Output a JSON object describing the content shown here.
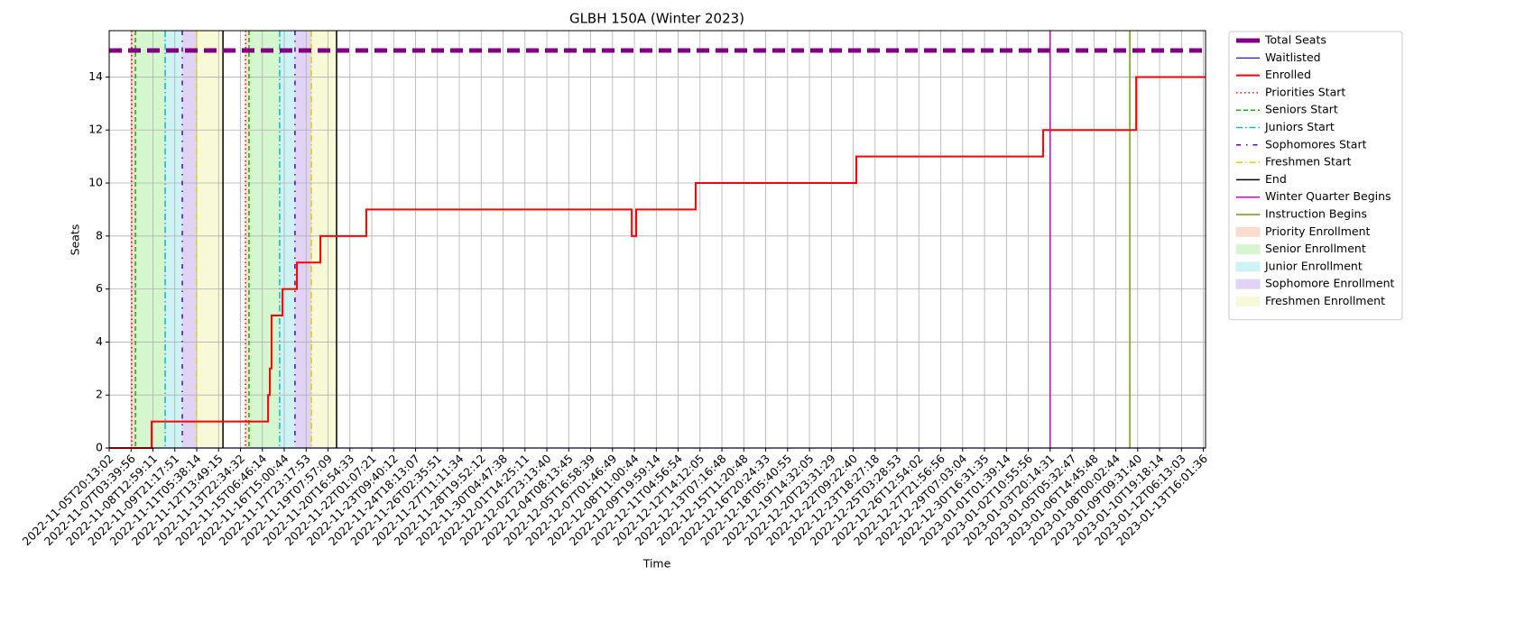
{
  "chart_data": {
    "type": "line",
    "title": "GLBH 150A (Winter 2023)",
    "x_label": "Time",
    "y_label": "Seats",
    "xlim": [
      0,
      50.1
    ],
    "ylim": [
      0,
      15.75
    ],
    "yticks": [
      0,
      2,
      4,
      6,
      8,
      10,
      12,
      14
    ],
    "xticks": [
      {
        "value": 0,
        "label": "2022-11-05T20:13:02"
      },
      {
        "value": 1,
        "label": "2022-11-07T03:39:56"
      },
      {
        "value": 2,
        "label": "2022-11-08T12:59:11"
      },
      {
        "value": 3,
        "label": "2022-11-09T21:17:51"
      },
      {
        "value": 4,
        "label": "2022-11-11T05:38:14"
      },
      {
        "value": 5,
        "label": "2022-11-12T13:49:15"
      },
      {
        "value": 6,
        "label": "2022-11-13T22:34:32"
      },
      {
        "value": 7,
        "label": "2022-11-15T06:46:14"
      },
      {
        "value": 8,
        "label": "2022-11-16T15:00:44"
      },
      {
        "value": 9,
        "label": "2022-11-17T23:17:53"
      },
      {
        "value": 10,
        "label": "2022-11-19T07:57:09"
      },
      {
        "value": 11,
        "label": "2022-11-20T16:54:33"
      },
      {
        "value": 12,
        "label": "2022-11-22T01:07:21"
      },
      {
        "value": 13,
        "label": "2022-11-23T09:40:12"
      },
      {
        "value": 14,
        "label": "2022-11-24T18:13:07"
      },
      {
        "value": 15,
        "label": "2022-11-26T02:35:51"
      },
      {
        "value": 16,
        "label": "2022-11-27T11:11:34"
      },
      {
        "value": 17,
        "label": "2022-11-28T19:52:12"
      },
      {
        "value": 18,
        "label": "2022-11-30T04:47:38"
      },
      {
        "value": 19,
        "label": "2022-12-01T14:25:11"
      },
      {
        "value": 20,
        "label": "2022-12-02T23:13:40"
      },
      {
        "value": 21,
        "label": "2022-12-04T08:13:45"
      },
      {
        "value": 22,
        "label": "2022-12-05T16:58:39"
      },
      {
        "value": 23,
        "label": "2022-12-07T01:46:49"
      },
      {
        "value": 24,
        "label": "2022-12-08T11:00:44"
      },
      {
        "value": 25,
        "label": "2022-12-09T19:59:14"
      },
      {
        "value": 26,
        "label": "2022-12-11T04:56:54"
      },
      {
        "value": 27,
        "label": "2022-12-12T14:12:05"
      },
      {
        "value": 28,
        "label": "2022-12-13T07:16:48"
      },
      {
        "value": 29,
        "label": "2022-12-15T11:20:48"
      },
      {
        "value": 30,
        "label": "2022-12-16T20:24:33"
      },
      {
        "value": 31,
        "label": "2022-12-18T05:40:55"
      },
      {
        "value": 32,
        "label": "2022-12-19T14:32:05"
      },
      {
        "value": 33,
        "label": "2022-12-20T23:31:29"
      },
      {
        "value": 34,
        "label": "2022-12-22T09:22:40"
      },
      {
        "value": 35,
        "label": "2022-12-23T18:27:18"
      },
      {
        "value": 36,
        "label": "2022-12-25T03:28:53"
      },
      {
        "value": 37,
        "label": "2022-12-26T12:54:02"
      },
      {
        "value": 38,
        "label": "2022-12-27T21:56:56"
      },
      {
        "value": 39,
        "label": "2022-12-29T07:03:04"
      },
      {
        "value": 40,
        "label": "2022-12-30T16:31:35"
      },
      {
        "value": 41,
        "label": "2023-01-01T01:39:14"
      },
      {
        "value": 42,
        "label": "2023-01-02T10:55:56"
      },
      {
        "value": 43,
        "label": "2023-01-03T20:14:31"
      },
      {
        "value": 44,
        "label": "2023-01-05T05:32:47"
      },
      {
        "value": 45,
        "label": "2023-01-06T14:45:48"
      },
      {
        "value": 46,
        "label": "2023-01-08T00:02:44"
      },
      {
        "value": 47,
        "label": "2023-01-09T09:31:40"
      },
      {
        "value": 48,
        "label": "2023-01-10T19:18:14"
      },
      {
        "value": 49,
        "label": "2023-01-12T06:13:03"
      },
      {
        "value": 50,
        "label": "2023-01-13T16:01:36"
      }
    ],
    "grid": true,
    "legend": "outside right",
    "hlines": [
      {
        "name": "Total Seats",
        "color": "#800080",
        "style": "dashed",
        "width": 5,
        "value": 15
      }
    ],
    "series": [
      {
        "name": "Waitlisted",
        "color": "#0000ff",
        "style": "solid",
        "width": 1.2,
        "x": [
          0,
          50.1
        ],
        "values": [
          0,
          0
        ]
      },
      {
        "name": "Enrolled",
        "color": "#ff0000",
        "style": "solid",
        "width": 2,
        "x": [
          0,
          1.94,
          7.26,
          7.34,
          7.42,
          7.92,
          8.58,
          9.65,
          11.75,
          23.88,
          24.08,
          26.8,
          34.14,
          42.68,
          46.93,
          50.1
        ],
        "values": [
          0,
          1,
          2,
          3,
          5,
          6,
          7,
          8,
          9,
          8,
          9,
          10,
          11,
          12,
          14,
          14
        ]
      }
    ],
    "vlines": [
      {
        "name": "Priorities Start",
        "color": "#ff0000",
        "style": "dotted",
        "x": [
          1.03,
          6.23
        ]
      },
      {
        "name": "Seniors Start",
        "color": "#00bb00",
        "style": "dashed",
        "x": [
          1.2,
          6.39
        ]
      },
      {
        "name": "Juniors Start",
        "color": "#00bfbf",
        "style": "dashdot",
        "x": [
          2.56,
          7.79
        ]
      },
      {
        "name": "Sophomores Start",
        "color": "#5500cc",
        "style": "loosedashdot",
        "x": [
          3.34,
          8.49
        ]
      },
      {
        "name": "Freshmen Start",
        "color": "#e0d000",
        "style": "dashdot",
        "x": [
          3.99,
          9.24
        ]
      },
      {
        "name": "End",
        "color": "#000000",
        "style": "solid",
        "x": [
          5.2,
          10.39
        ]
      },
      {
        "name": "Winter Quarter Begins",
        "color": "#cc00cc",
        "style": "solid",
        "x": [
          43.0
        ]
      },
      {
        "name": "Instruction Begins",
        "color": "#6b9e00",
        "style": "solid",
        "x": [
          46.64
        ]
      }
    ],
    "spans": [
      {
        "name": "Priority Enrollment",
        "color": "#fbdccf",
        "ranges": [
          [
            1.03,
            1.2
          ],
          [
            6.23,
            6.39
          ]
        ]
      },
      {
        "name": "Senior Enrollment",
        "color": "#d6f6d0",
        "ranges": [
          [
            1.2,
            2.56
          ],
          [
            6.39,
            7.79
          ]
        ]
      },
      {
        "name": "Junior Enrollment",
        "color": "#cdf3f4",
        "ranges": [
          [
            2.56,
            3.34
          ],
          [
            7.79,
            8.49
          ]
        ]
      },
      {
        "name": "Sophomore Enrollment",
        "color": "#e0d3f6",
        "ranges": [
          [
            3.34,
            3.99
          ],
          [
            8.49,
            9.24
          ]
        ]
      },
      {
        "name": "Freshmen Enrollment",
        "color": "#f8f9d6",
        "ranges": [
          [
            3.99,
            5.2
          ],
          [
            9.24,
            10.39
          ]
        ]
      }
    ]
  }
}
